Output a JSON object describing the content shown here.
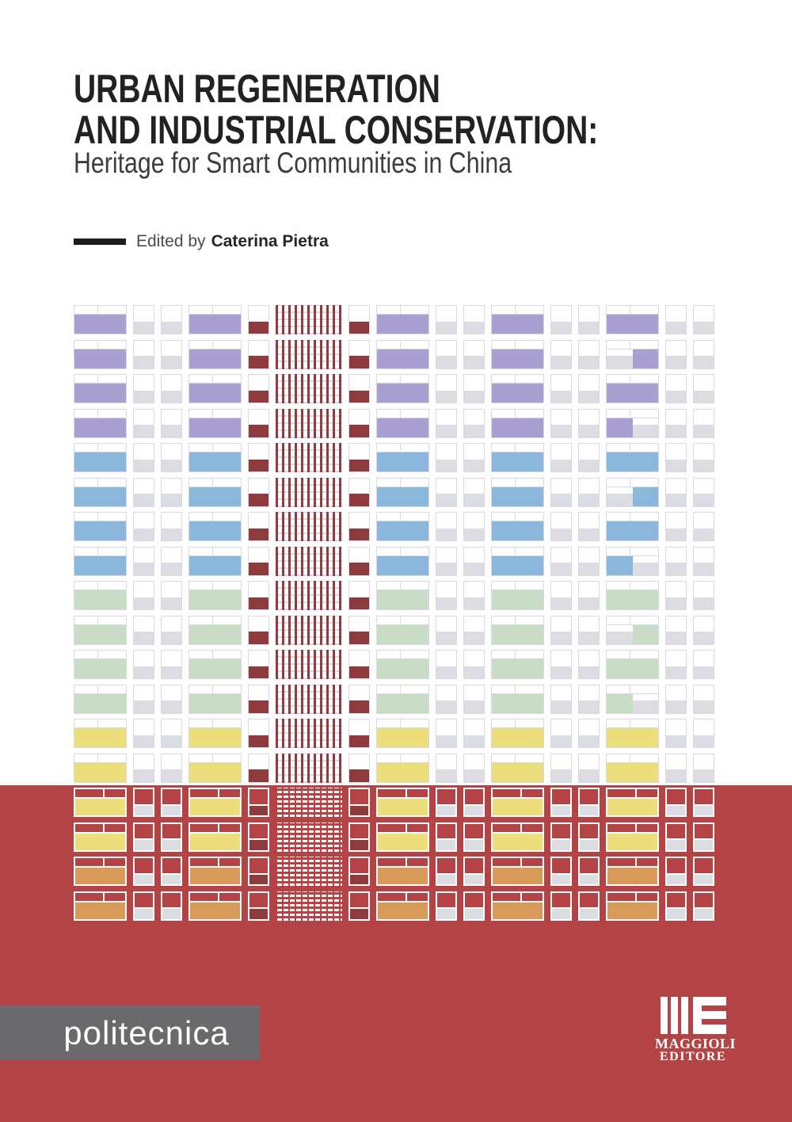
{
  "cover": {
    "title_line1": "URBAN REGENERATION",
    "title_line2": "AND INDUSTRIAL CONSERVATION:",
    "subtitle": "Heritage for Smart Communities in China",
    "edited_by_label": "Edited by",
    "editor_name": "Caterina Pietra"
  },
  "footer": {
    "series_logo_text": "politecnica",
    "publisher_name_line1": "MAGGIOLI",
    "publisher_name_line2": "EDITORE"
  },
  "colors": {
    "band_red": "#b34345",
    "stripe_red": "#943a3c",
    "dark_red": "#8f3a3c",
    "purple": "#a9a0d1",
    "blue": "#8ab7db",
    "green": "#c9dcc6",
    "yellow": "#ecdf7b",
    "orange": "#d89a58",
    "light_gray": "#dcdce3",
    "border_gray": "#d9d9e1",
    "logo_gray": "#6a696b",
    "title_black": "#242122",
    "subtitle_gray": "#3c3c3c"
  },
  "pattern": {
    "columns": [
      "wide",
      "small",
      "small",
      "wide",
      "rsmall",
      "stripes",
      "rsmall",
      "wide",
      "small",
      "small",
      "wide",
      "small",
      "small",
      "wide",
      "small",
      "small"
    ],
    "rows": [
      {
        "color": "purple",
        "bg": "white",
        "variant": "full"
      },
      {
        "color": "purple",
        "bg": "white",
        "variant": "half-right"
      },
      {
        "color": "purple",
        "bg": "white",
        "variant": "full"
      },
      {
        "color": "purple",
        "bg": "white",
        "variant": "half-left"
      },
      {
        "color": "blue",
        "bg": "white",
        "variant": "full"
      },
      {
        "color": "blue",
        "bg": "white",
        "variant": "half-right"
      },
      {
        "color": "blue",
        "bg": "white",
        "variant": "full"
      },
      {
        "color": "blue",
        "bg": "white",
        "variant": "half-left"
      },
      {
        "color": "green",
        "bg": "white",
        "variant": "full"
      },
      {
        "color": "green",
        "bg": "white",
        "variant": "half-right"
      },
      {
        "color": "green",
        "bg": "white",
        "variant": "full"
      },
      {
        "color": "green",
        "bg": "white",
        "variant": "half-left"
      },
      {
        "color": "yellow",
        "bg": "white",
        "variant": "full"
      },
      {
        "color": "yellow",
        "bg": "white",
        "variant": "full"
      },
      {
        "color": "yellow",
        "bg": "red",
        "variant": "full"
      },
      {
        "color": "yellow",
        "bg": "red",
        "variant": "full"
      },
      {
        "color": "orange",
        "bg": "red",
        "variant": "full"
      },
      {
        "color": "orange",
        "bg": "red",
        "variant": "full"
      }
    ]
  }
}
